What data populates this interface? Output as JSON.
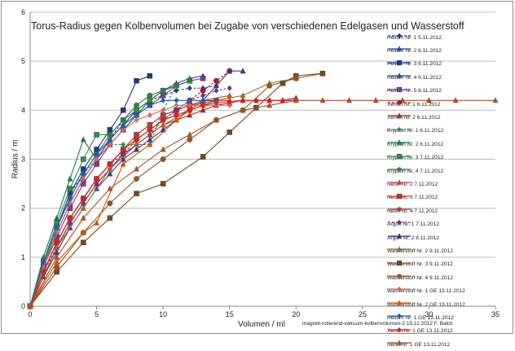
{
  "chart_data": {
    "type": "line",
    "title": "Torus-Radius gegen Kolbenvolumen bei Zugabe von verschiedenen Edelgasen und Wasserstoff",
    "xlabel": "Volumen / ml",
    "ylabel": "Radius / m",
    "footnote": "magnet-rotierend-vakuum-kolbenvolumen-2 15.11.2012 F. Balck",
    "xlim": [
      0,
      35
    ],
    "ylim": [
      0,
      6
    ],
    "xticks": [
      "0",
      "5",
      "10",
      "15",
      "20",
      "25",
      "30",
      "35"
    ],
    "yticks": [
      "0",
      "1",
      "2",
      "3",
      "4",
      "5",
      "6"
    ],
    "grid": "horizontal",
    "legend_position": "right",
    "series": [
      {
        "name": "Helium Nr. 1  5.11.2012",
        "color": "#1f3f8a",
        "marker": "diamond",
        "dash": true,
        "x": [
          0,
          1,
          2,
          3,
          4,
          5,
          6,
          7,
          8,
          9,
          10,
          11,
          12,
          13,
          14
        ],
        "y": [
          0,
          0.9,
          1.6,
          2.3,
          2.7,
          3.1,
          3.4,
          3.8,
          4.0,
          4.2,
          4.3,
          4.4,
          4.45,
          4.45,
          4.5
        ]
      },
      {
        "name": "Helium Nr. 2  6.11.2012",
        "color": "#2a4fa0",
        "marker": "triangle",
        "dash": false,
        "x": [
          0,
          1,
          2,
          3,
          4,
          5,
          6,
          7,
          8,
          9,
          10,
          11,
          12
        ],
        "y": [
          0,
          0.8,
          1.5,
          2.1,
          2.6,
          3.0,
          3.4,
          3.7,
          4.0,
          4.2,
          4.4,
          4.5,
          4.6
        ]
      },
      {
        "name": "Helium Nr. 3  6.11.2012",
        "color": "#1c3c82",
        "marker": "square",
        "dash": false,
        "x": [
          0,
          1,
          2,
          3,
          4,
          5,
          6,
          7,
          8,
          9
        ],
        "y": [
          0,
          0.9,
          1.6,
          2.3,
          2.8,
          3.2,
          3.6,
          4.0,
          4.6,
          4.7
        ]
      },
      {
        "name": "Helium Nr. 4  6.11.2012",
        "color": "#3c4a9a",
        "marker": "triangle",
        "dash": false,
        "x": [
          0,
          1,
          2,
          3,
          4,
          5,
          6,
          7,
          8,
          9,
          10,
          11,
          12,
          13
        ],
        "y": [
          0,
          0.85,
          1.5,
          2.1,
          2.6,
          3.0,
          3.4,
          3.7,
          4.0,
          4.2,
          4.4,
          4.55,
          4.65,
          4.7
        ]
      },
      {
        "name": "Helium Nr. 5  6.11.2012",
        "color": "#7b3a96",
        "marker": "square",
        "dash": false,
        "x": [
          0,
          1,
          2,
          3,
          4,
          5,
          6,
          7,
          8,
          9,
          10,
          11,
          12,
          13
        ],
        "y": [
          0,
          0.8,
          1.4,
          2.0,
          2.5,
          2.9,
          3.3,
          3.6,
          3.9,
          4.1,
          4.3,
          4.5,
          4.6,
          4.65
        ]
      },
      {
        "name": "Xenon Nr. 1  6.11.2012",
        "color": "#a02030",
        "marker": "circle",
        "dash": true,
        "x": [
          0,
          1,
          2,
          3,
          4,
          5,
          6,
          7,
          8,
          9,
          10,
          11,
          12,
          13,
          14,
          15
        ],
        "y": [
          0,
          0.7,
          1.3,
          1.8,
          2.2,
          2.6,
          2.9,
          3.1,
          3.4,
          3.6,
          3.8,
          4.0,
          4.2,
          4.4,
          4.6,
          4.8
        ]
      },
      {
        "name": "Xenon Nr. 2  6.11.2012",
        "color": "#b22222",
        "marker": "triangle",
        "dash": false,
        "x": [
          0,
          1,
          2,
          3,
          4,
          5,
          6,
          7,
          8,
          9,
          10,
          11,
          12,
          13,
          14,
          15,
          16,
          17,
          18,
          19,
          20
        ],
        "y": [
          0,
          0.6,
          1.2,
          1.7,
          2.1,
          2.5,
          2.8,
          3.1,
          3.3,
          3.5,
          3.7,
          3.8,
          3.9,
          4.0,
          4.1,
          4.15,
          4.2,
          4.2,
          4.2,
          4.2,
          4.25
        ]
      },
      {
        "name": "Krypton Nr. 1  6.11.2012",
        "color": "#2e8b57",
        "marker": "diamond",
        "dash": true,
        "x": [
          0,
          1,
          2,
          3,
          4,
          5,
          6,
          7,
          8,
          9,
          10,
          11
        ],
        "y": [
          0,
          0.8,
          1.6,
          2.2,
          2.7,
          3.0,
          3.3,
          3.3,
          3.3,
          3.3,
          4.0,
          4.5
        ]
      },
      {
        "name": "Krypton Nr. 2  6.11.2012",
        "color": "#1f7a4a",
        "marker": "triangle",
        "dash": false,
        "x": [
          0,
          1,
          2,
          3,
          4,
          5,
          6,
          7,
          8,
          9,
          10,
          11,
          12
        ],
        "y": [
          0,
          1.0,
          1.8,
          2.6,
          3.4,
          3.0,
          3.3,
          3.6,
          3.9,
          4.2,
          4.4,
          4.5,
          4.6
        ]
      },
      {
        "name": "Krypton Nr. 3  7.11.2012",
        "color": "#2f8f4f",
        "marker": "square",
        "dash": false,
        "x": [
          0,
          1,
          2,
          3,
          4,
          5,
          6,
          7,
          8,
          9,
          10,
          11,
          12
        ],
        "y": [
          0,
          0.9,
          1.7,
          2.4,
          3.0,
          3.5,
          3.5,
          3.8,
          4.0,
          4.2,
          4.4,
          4.5,
          4.6
        ]
      },
      {
        "name": "Krypton Nr. 4  7.11.2012",
        "color": "#3a7d44",
        "marker": "circle",
        "dash": false,
        "x": [
          0,
          1,
          2,
          3,
          4,
          5,
          6,
          7,
          8,
          9,
          10,
          11,
          12
        ],
        "y": [
          0,
          0.9,
          1.6,
          2.2,
          2.7,
          3.1,
          3.5,
          3.8,
          4.1,
          4.3,
          4.4,
          4.5,
          4.6
        ]
      },
      {
        "name": "Neon Nr. 2  7.11.2012",
        "color": "#d04040",
        "marker": "triangle",
        "dash": false,
        "x": [
          0,
          1,
          2,
          3,
          4,
          5,
          6,
          7,
          8,
          9,
          10,
          11,
          12,
          13,
          14,
          15
        ],
        "y": [
          0,
          0.7,
          1.3,
          1.8,
          2.2,
          2.6,
          2.9,
          3.2,
          3.5,
          3.7,
          3.9,
          4.0,
          4.1,
          4.2,
          4.2,
          4.2
        ]
      },
      {
        "name": "Neon Nr. 3  7.11.2012",
        "color": "#c0392b",
        "marker": "square",
        "dash": false,
        "x": [
          0,
          1,
          2,
          3,
          4,
          5,
          6,
          7,
          8,
          9,
          10,
          11,
          12,
          13,
          14
        ],
        "y": [
          0,
          0.7,
          1.3,
          1.8,
          2.2,
          2.6,
          2.9,
          3.2,
          3.5,
          3.7,
          3.9,
          4.0,
          4.1,
          4.15,
          4.2
        ]
      },
      {
        "name": "Neon Nr. 4  7.11.2012",
        "color": "#b03a48",
        "marker": "circle",
        "dash": false,
        "x": [
          0,
          1,
          2,
          3,
          4,
          5,
          6,
          7,
          8,
          9,
          10,
          11,
          12,
          13
        ],
        "y": [
          0,
          0.7,
          1.3,
          1.8,
          2.2,
          2.6,
          2.9,
          3.2,
          3.4,
          3.6,
          3.8,
          3.9,
          4.0,
          4.1
        ]
      },
      {
        "name": "Argon Nr. 1  7.11.2012",
        "color": "#5a3a8a",
        "marker": "diamond",
        "dash": true,
        "x": [
          0,
          1,
          2,
          3,
          4,
          5,
          6,
          7,
          8,
          9,
          10,
          11,
          12,
          13,
          14,
          15
        ],
        "y": [
          0,
          0.7,
          1.2,
          1.7,
          2.1,
          2.5,
          2.8,
          3.1,
          3.3,
          3.5,
          3.8,
          4.0,
          4.2,
          4.3,
          4.4,
          4.45
        ]
      },
      {
        "name": "Argon Nr. 2  8.11.2012",
        "color": "#4a3280",
        "marker": "triangle",
        "dash": false,
        "x": [
          0,
          1,
          2,
          3,
          4,
          5,
          6,
          7,
          8,
          9,
          10,
          11,
          12,
          13,
          14,
          15,
          16
        ],
        "y": [
          0,
          0.6,
          1.1,
          1.6,
          2.0,
          2.4,
          2.7,
          3.0,
          3.2,
          3.4,
          3.6,
          3.8,
          4.0,
          4.2,
          4.5,
          4.8,
          4.8
        ]
      },
      {
        "name": "Wasserstoff Nr. 2  9.11.2012",
        "color": "#9a6a2a",
        "marker": "triangle",
        "dash": false,
        "x": [
          0,
          2,
          4,
          6,
          8,
          10,
          12,
          14,
          16,
          18,
          20,
          22
        ],
        "y": [
          0,
          1.2,
          2.0,
          2.8,
          3.3,
          3.7,
          4.0,
          4.2,
          4.3,
          4.55,
          4.65,
          4.75
        ]
      },
      {
        "name": "Wasserstoff Nr. 3  9.11.2012",
        "color": "#7a4a1a",
        "marker": "square",
        "dash": false,
        "x": [
          0,
          2,
          4,
          6,
          8,
          10,
          13,
          15,
          17,
          19,
          20,
          22
        ],
        "y": [
          0,
          0.7,
          1.3,
          1.8,
          2.3,
          2.5,
          3.05,
          3.55,
          4.05,
          4.55,
          4.7,
          4.75
        ]
      },
      {
        "name": "Wasserstoff Nr. 4  9.11.2012",
        "color": "#8a5a2a",
        "marker": "circle",
        "dash": false,
        "x": [
          0,
          2,
          4,
          6,
          8,
          10,
          12,
          14,
          16,
          18,
          20
        ],
        "y": [
          0,
          0.8,
          1.5,
          2.1,
          2.6,
          3.0,
          3.4,
          3.8,
          4.0,
          4.5,
          4.65
        ]
      },
      {
        "name": "Wasserstoff Nr. 1 GE 13.11.2012",
        "color": "#e06060",
        "marker": "diamond",
        "dash": false,
        "x": [
          0,
          1,
          2,
          3,
          4,
          5,
          6,
          7,
          8,
          9,
          10,
          11,
          12,
          13,
          14,
          15
        ],
        "y": [
          0,
          0.8,
          1.5,
          2.1,
          2.6,
          3.0,
          3.3,
          3.6,
          3.8,
          3.9,
          4.0,
          4.1,
          4.1,
          4.1,
          4.1,
          4.1
        ]
      },
      {
        "name": "Wasserstoff Nr. 2 GE 13.11.2012",
        "color": "#d45500",
        "marker": "triangle",
        "dash": false,
        "x": [
          0,
          2,
          4,
          5,
          7,
          9,
          11,
          13,
          15
        ],
        "y": [
          0,
          0.9,
          1.5,
          1.7,
          2.9,
          3.3,
          3.8,
          4.2,
          4.3
        ]
      },
      {
        "name": "Helium Nr. 1  GE  13.11.2012",
        "color": "#1f5fb4",
        "marker": "diamond",
        "dash": false,
        "x": [
          0,
          1,
          2,
          3,
          4,
          5,
          6,
          7,
          8,
          9,
          10,
          11,
          12,
          13,
          14
        ],
        "y": [
          0,
          0.9,
          1.6,
          2.2,
          2.7,
          3.1,
          3.4,
          3.7,
          3.9,
          4.1,
          4.2,
          4.2,
          4.2,
          4.2,
          4.2
        ]
      },
      {
        "name": "Xenon Nr. 1  GE  13.11.2012",
        "color": "#e0201a",
        "marker": "diamond",
        "dash": false,
        "x": [
          0,
          1,
          2,
          3,
          4,
          5,
          6,
          7,
          8,
          9,
          10,
          11,
          12,
          13,
          14,
          15,
          16,
          17,
          18,
          19,
          20
        ],
        "y": [
          0,
          0.7,
          1.3,
          1.8,
          2.2,
          2.6,
          2.9,
          3.2,
          3.4,
          3.6,
          3.8,
          3.9,
          4.0,
          4.1,
          4.15,
          4.18,
          4.2,
          4.2,
          4.2,
          4.2,
          4.2
        ]
      },
      {
        "name": "Neon Nr. 1 GE 13.11.2012",
        "color": "#a0522d",
        "marker": "triangle",
        "dash": false,
        "x": [
          0,
          2,
          4,
          6,
          8,
          10,
          12,
          14,
          16,
          18,
          20,
          22,
          24,
          26,
          28,
          30,
          32,
          35
        ],
        "y": [
          0,
          1.0,
          1.8,
          2.4,
          2.8,
          3.2,
          3.5,
          3.8,
          4.0,
          4.1,
          4.2,
          4.2,
          4.2,
          4.2,
          4.2,
          4.2,
          4.2,
          4.2
        ]
      }
    ]
  }
}
